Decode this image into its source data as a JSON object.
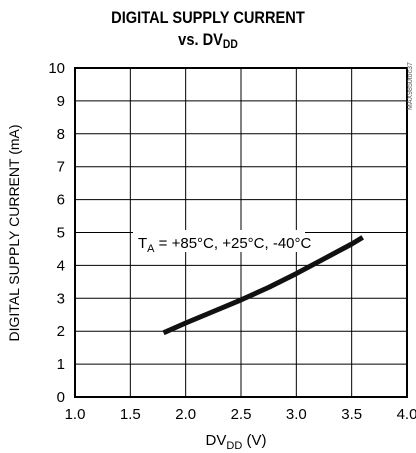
{
  "chart_data": {
    "type": "line",
    "title_line1": "DIGITAL SUPPLY CURRENT",
    "title_line2_prefix": "vs. DV",
    "title_line2_sub": "DD",
    "xlabel_prefix": "DV",
    "xlabel_sub": "DD",
    "xlabel_suffix": " (V)",
    "ylabel": "DIGITAL SUPPLY CURRENT (mA)",
    "xlim": [
      1.0,
      4.0
    ],
    "ylim": [
      0,
      10
    ],
    "x_ticks": [
      "1.0",
      "1.5",
      "2.0",
      "2.5",
      "3.0",
      "3.5",
      "4.0"
    ],
    "y_ticks": [
      "0",
      "1",
      "2",
      "3",
      "4",
      "5",
      "6",
      "7",
      "8",
      "9",
      "10"
    ],
    "grid": true,
    "watermark": "MAX9850toc37",
    "annotation": {
      "prefix": "T",
      "sub": "A",
      "text": " = +85°C, +25°C, -40°C"
    },
    "series": [
      {
        "x": [
          1.8,
          2.0,
          2.25,
          2.5,
          2.75,
          3.0,
          3.25,
          3.5,
          3.6
        ],
        "y": [
          1.95,
          2.25,
          2.6,
          2.95,
          3.33,
          3.75,
          4.2,
          4.65,
          4.85
        ]
      }
    ]
  }
}
